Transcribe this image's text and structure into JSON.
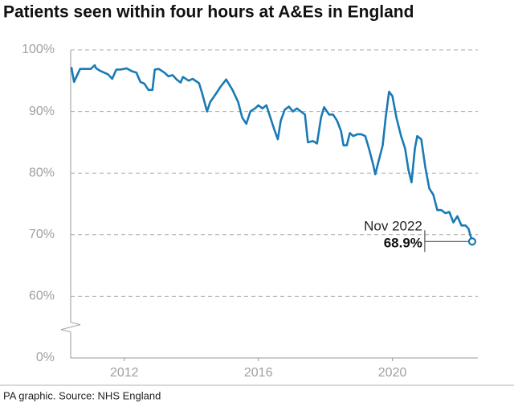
{
  "chart_data": {
    "type": "line",
    "title": "Patients seen within four hours at A&Es in England",
    "source": "PA graphic. Source: NHS England",
    "annotation": {
      "text": "Nov 2022",
      "value_label": "68.9%"
    },
    "axis_break": true,
    "grid": true,
    "ylim": [
      0,
      100
    ],
    "yticks": [
      {
        "value": 0,
        "label": "0%"
      },
      {
        "value": 60,
        "label": "60%"
      },
      {
        "value": 70,
        "label": "70%"
      },
      {
        "value": 80,
        "label": "80%"
      },
      {
        "value": 90,
        "label": "90%"
      },
      {
        "value": 100,
        "label": "100%"
      }
    ],
    "xlim": [
      2010.9,
      2023.05
    ],
    "xticks": [
      {
        "value": 2012.5,
        "label": "2012"
      },
      {
        "value": 2016.5,
        "label": "2016"
      },
      {
        "value": 2020.5,
        "label": "2020"
      }
    ],
    "series": [
      {
        "name": "Seen within four hours",
        "color": "#1a7ab5",
        "x": [
          2010.92,
          2011.0,
          2011.18,
          2011.5,
          2011.62,
          2011.66,
          2011.78,
          2012.02,
          2012.14,
          2012.26,
          2012.38,
          2012.57,
          2012.74,
          2012.86,
          2012.98,
          2013.1,
          2013.22,
          2013.34,
          2013.41,
          2013.53,
          2013.7,
          2013.82,
          2013.94,
          2014.06,
          2014.18,
          2014.25,
          2014.42,
          2014.54,
          2014.73,
          2014.82,
          2014.97,
          2015.06,
          2015.25,
          2015.37,
          2015.54,
          2015.73,
          2015.9,
          2016.02,
          2016.14,
          2016.26,
          2016.4,
          2016.5,
          2016.62,
          2016.74,
          2016.86,
          2016.98,
          2017.08,
          2017.17,
          2017.29,
          2017.41,
          2017.53,
          2017.65,
          2017.77,
          2017.89,
          2017.98,
          2018.13,
          2018.25,
          2018.37,
          2018.46,
          2018.61,
          2018.73,
          2018.85,
          2018.97,
          2019.04,
          2019.14,
          2019.23,
          2019.33,
          2019.45,
          2019.57,
          2019.69,
          2019.8,
          2019.92,
          2019.99,
          2020.09,
          2020.21,
          2020.3,
          2020.4,
          2020.5,
          2020.62,
          2020.76,
          2020.88,
          2020.98,
          2021.07,
          2021.17,
          2021.24,
          2021.36,
          2021.48,
          2021.6,
          2021.72,
          2021.84,
          2021.96,
          2022.08,
          2022.2,
          2022.32,
          2022.44,
          2022.56,
          2022.68,
          2022.77,
          2022.88
        ],
        "values": [
          97.2,
          94.8,
          96.9,
          96.9,
          97.5,
          97.0,
          96.6,
          96.0,
          95.3,
          96.8,
          96.8,
          97.0,
          96.5,
          96.3,
          94.8,
          94.5,
          93.5,
          93.5,
          96.8,
          96.9,
          96.3,
          95.7,
          95.9,
          95.2,
          94.7,
          95.6,
          95.0,
          95.3,
          94.6,
          93.0,
          90.0,
          91.5,
          93.0,
          94.0,
          95.2,
          93.5,
          91.5,
          89.0,
          88.0,
          90.0,
          90.5,
          91.0,
          90.5,
          91.0,
          89.0,
          87.0,
          85.5,
          88.5,
          90.3,
          90.8,
          90.0,
          90.5,
          90.0,
          89.5,
          85.0,
          85.2,
          84.8,
          89.0,
          90.7,
          89.5,
          89.5,
          88.5,
          86.8,
          84.5,
          84.5,
          86.5,
          86.0,
          86.3,
          86.3,
          86.0,
          84.0,
          81.5,
          79.8,
          82.0,
          84.5,
          89.0,
          93.2,
          92.5,
          89.0,
          86.0,
          84.0,
          80.5,
          78.5,
          84.0,
          86.0,
          85.5,
          81.0,
          77.5,
          76.5,
          74.0,
          74.0,
          73.5,
          73.7,
          72.0,
          73.0,
          71.5,
          71.5,
          71.0,
          68.9
        ]
      }
    ]
  }
}
